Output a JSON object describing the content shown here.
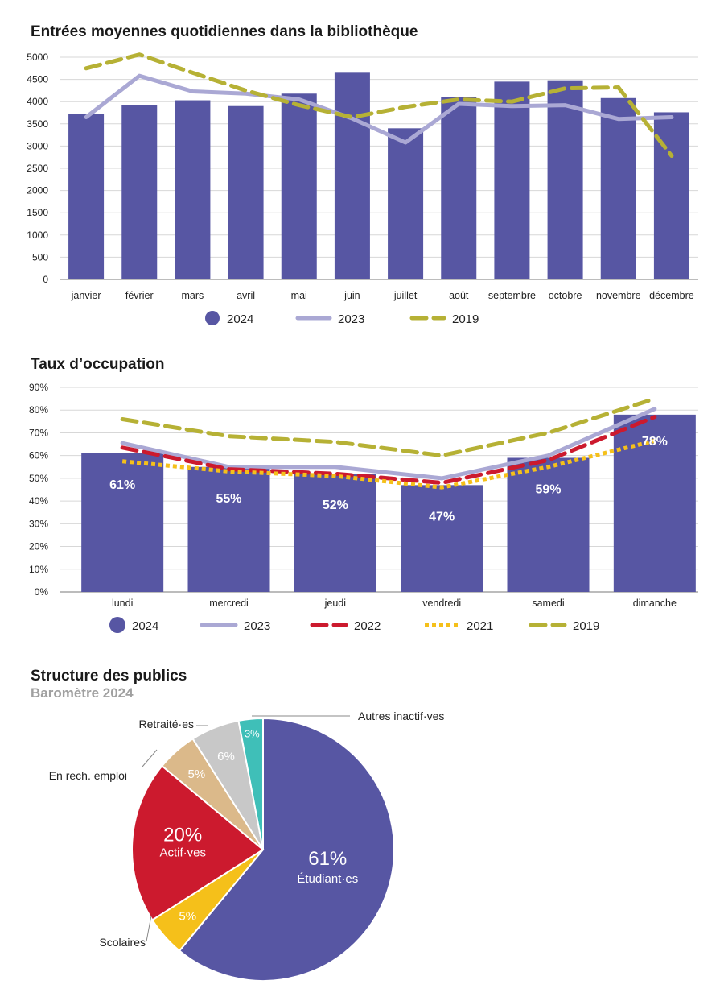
{
  "colors": {
    "s2024": "#5756a3",
    "s2023": "#aaa8d4",
    "s2022": "#cc1a2e",
    "s2021": "#f5c01a",
    "s2019": "#b6b135",
    "grid": "#d7d7d7",
    "axis": "#7a7a7a"
  },
  "chart_data": [
    {
      "type": "bar",
      "title": "Entrées moyennes quotidiennes dans la bibliothèque",
      "categories": [
        "janvier",
        "février",
        "mars",
        "avril",
        "mai",
        "juin",
        "juillet",
        "août",
        "septembre",
        "octobre",
        "novembre",
        "décembre"
      ],
      "ylim": [
        0,
        5000
      ],
      "yticks": [
        "0",
        "500",
        "1000",
        "1500",
        "2000",
        "2500",
        "3000",
        "3500",
        "4000",
        "4500",
        "5000"
      ],
      "grid": true,
      "legend_position": "bottom",
      "series": [
        {
          "name": "2024",
          "type": "bar",
          "values": [
            3720,
            3920,
            4030,
            3900,
            4180,
            4650,
            3400,
            4100,
            4450,
            4480,
            4080,
            3760
          ]
        },
        {
          "name": "2023",
          "type": "line",
          "values": [
            3650,
            4580,
            4230,
            4180,
            4050,
            3620,
            3080,
            3950,
            3900,
            3920,
            3610,
            3650
          ]
        },
        {
          "name": "2019",
          "type": "dashed-line",
          "values": [
            4750,
            5060,
            4650,
            4250,
            3920,
            3650,
            3880,
            4050,
            4000,
            4300,
            4320,
            2780
          ]
        }
      ]
    },
    {
      "type": "bar",
      "title": "Taux d’occupation",
      "categories": [
        "lundi",
        "mercredi",
        "jeudi",
        "vendredi",
        "samedi",
        "dimanche"
      ],
      "ylim": [
        0,
        90
      ],
      "yticks": [
        "0%",
        "10%",
        "20%",
        "30%",
        "40%",
        "50%",
        "60%",
        "70%",
        "80%",
        "90%"
      ],
      "grid": true,
      "legend_position": "bottom",
      "series": [
        {
          "name": "2024",
          "type": "bar",
          "values": [
            61,
            55,
            52,
            47,
            59,
            78
          ],
          "labels": [
            "61%",
            "55%",
            "52%",
            "47%",
            "59%",
            "78%"
          ]
        },
        {
          "name": "2023",
          "type": "line",
          "values": [
            65.5,
            55,
            55,
            50,
            60,
            80.5
          ]
        },
        {
          "name": "2022",
          "type": "dashed-line",
          "values": [
            63.5,
            54,
            52,
            48,
            58,
            77
          ]
        },
        {
          "name": "2021",
          "type": "dotted-line",
          "values": [
            57.5,
            53,
            51,
            46,
            55,
            66.5
          ]
        },
        {
          "name": "2019",
          "type": "dashed-line",
          "values": [
            76,
            68.5,
            66,
            60,
            70,
            85
          ]
        }
      ]
    },
    {
      "type": "pie",
      "title": "Structure des publics",
      "subtitle": "Baromètre 2024",
      "slices": [
        {
          "name": "Étudiant·es",
          "value": 61,
          "label": "61%",
          "color": "#5756a3"
        },
        {
          "name": "Scolaires",
          "value": 5,
          "label": "5%",
          "color": "#f5c01a"
        },
        {
          "name": "Actif·ves",
          "value": 20,
          "label": "20%",
          "color": "#cc1a2e"
        },
        {
          "name": "En rech. emploi",
          "value": 5,
          "label": "5%",
          "color": "#dbb98a"
        },
        {
          "name": "Retraité·es",
          "value": 6,
          "label": "6%",
          "color": "#c8c8c8"
        },
        {
          "name": "Autres inactif·ves",
          "value": 3,
          "label": "3%",
          "color": "#3fbfb8"
        }
      ]
    }
  ]
}
